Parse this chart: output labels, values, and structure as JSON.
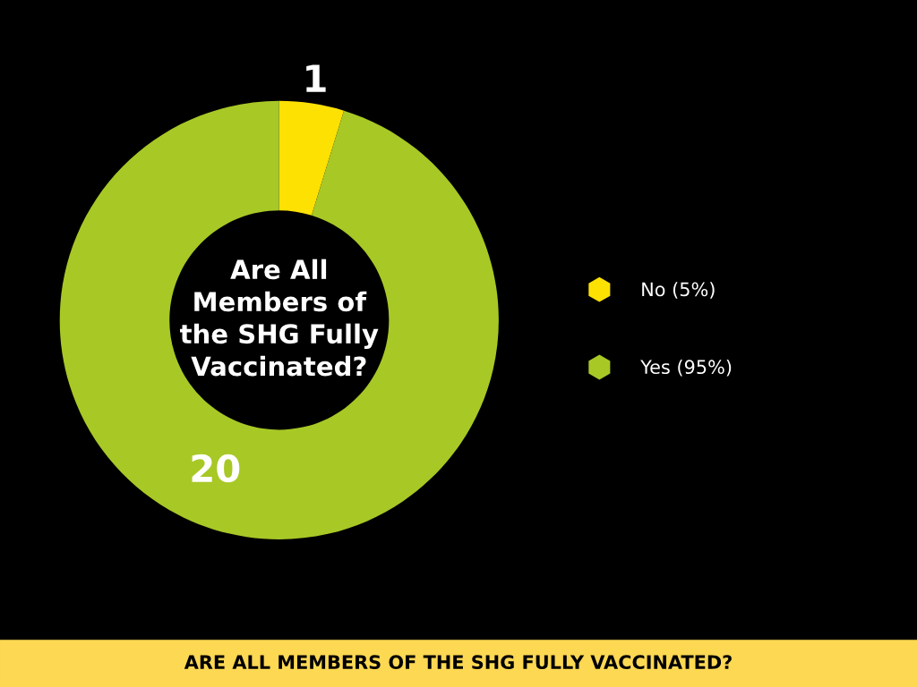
{
  "chart_data": {
    "type": "donut",
    "title": "ARE ALL MEMBERS OF THE SHG FULLY VACCINATED?",
    "subtitle": "Are All\nMembers of\nthe SHG Fully\nVaccinated?",
    "categories": [
      "No (5%)",
      "Yes (95%)"
    ],
    "values": [
      1,
      20
    ],
    "colors": [
      "#fde102",
      "#a8c826"
    ],
    "data_labels": true,
    "legend": "right",
    "marker": "hexagon"
  }
}
